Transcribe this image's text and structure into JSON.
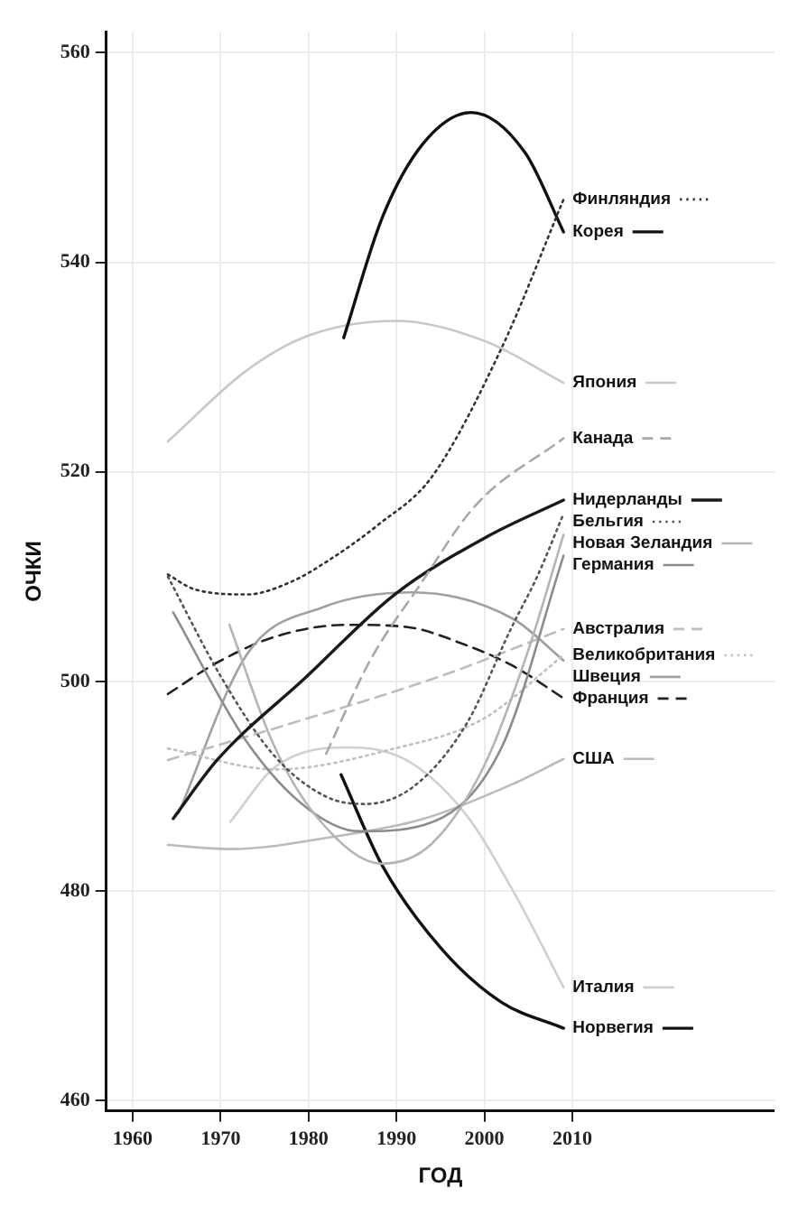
{
  "chart_data": {
    "type": "line",
    "xlabel": "ГОД",
    "ylabel": "ОЧКИ",
    "xlim": [
      1957,
      2033
    ],
    "ylim": [
      459,
      562
    ],
    "xticks": [
      1960,
      1970,
      1980,
      1990,
      2000,
      2010
    ],
    "yticks": [
      460,
      480,
      500,
      520,
      540,
      560
    ],
    "grid": true,
    "legend": "right",
    "series": [
      {
        "name": "Финляндия",
        "color": "#333333",
        "line_style": "dotted",
        "x": [
          1964,
          1967,
          1973,
          1978,
          1982,
          1988,
          1994,
          2002,
          2009
        ],
        "values": [
          510.2,
          508.8,
          508.3,
          509.5,
          511.4,
          515,
          519.5,
          531.9,
          546
        ]
      },
      {
        "name": "Корея",
        "color": "#111111",
        "line_style": "solid",
        "x": [
          1984,
          1988.4,
          1993,
          1998.5,
          2004.6,
          2009
        ],
        "values": [
          532.8,
          544.3,
          551.3,
          554.3,
          550.5,
          542.9
        ]
      },
      {
        "name": "Япония",
        "color": "#c8c8c8",
        "line_style": "solid",
        "x": [
          1964,
          1973,
          1980,
          1990,
          2000,
          2009
        ],
        "values": [
          522.9,
          529.7,
          533,
          534.4,
          532.5,
          528.5
        ]
      },
      {
        "name": "Канада",
        "color": "#a8a8a8",
        "line_style": "dashed",
        "x": [
          1982,
          1987,
          1992.5,
          1999,
          2009
        ],
        "values": [
          493.1,
          502,
          509,
          516.8,
          523.2
        ]
      },
      {
        "name": "Нидерланды",
        "color": "#1a1a1a",
        "line_style": "solid",
        "x": [
          1964.6,
          1969.6,
          1979.7,
          1989.8,
          2000.5,
          2009
        ],
        "values": [
          486.9,
          492.5,
          500.4,
          508.3,
          513.9,
          517.3
        ]
      },
      {
        "name": "Бельгия",
        "color": "#555555",
        "line_style": "dotted",
        "x": [
          1964,
          1970,
          1976,
          1982,
          1986.4,
          1992,
          1998,
          2003,
          2006,
          2009
        ],
        "values": [
          510,
          500.5,
          493,
          489,
          488.3,
          490,
          496,
          505,
          510,
          516
        ]
      },
      {
        "name": "Новая Зеландия",
        "color": "#b4b4b4",
        "line_style": "solid",
        "x": [
          1971,
          1976,
          1981,
          1988.4,
          1994,
          2000,
          2005,
          2009
        ],
        "values": [
          505.4,
          494,
          487,
          482.6,
          484.5,
          492,
          503,
          514
        ]
      },
      {
        "name": "Германия",
        "color": "#8c8c8c",
        "line_style": "solid",
        "x": [
          1964.6,
          1973,
          1979.7,
          1985.7,
          1993.1,
          2001.9,
          2009
        ],
        "values": [
          506.6,
          494.2,
          488,
          485.7,
          486.3,
          493.6,
          512
        ]
      },
      {
        "name": "Австралия",
        "color": "#bdbdbd",
        "line_style": "dashed",
        "x": [
          1964,
          1980,
          1995,
          2009
        ],
        "values": [
          492.5,
          496.5,
          500.5,
          505
        ]
      },
      {
        "name": "Великобритания",
        "color": "#c0c0c0",
        "line_style": "dotted",
        "x": [
          1964,
          1976.3,
          1989.8,
          1999.8,
          2009
        ],
        "values": [
          493.6,
          491.6,
          493.6,
          496.4,
          502.5
        ]
      },
      {
        "name": "Швеция",
        "color": "#a0a0a0",
        "line_style": "solid",
        "x": [
          1965.2,
          1973,
          1981.7,
          1991.8,
          2003.2,
          2009
        ],
        "values": [
          487.4,
          502.6,
          507.1,
          508.5,
          506,
          502
        ]
      },
      {
        "name": "Франция",
        "color": "#222222",
        "line_style": "dashed",
        "x": [
          1964,
          1969.6,
          1976.3,
          1984.4,
          1991.1,
          1997.8,
          2003.2,
          2009
        ],
        "values": [
          498.8,
          501.8,
          504.3,
          505.4,
          505.2,
          503.5,
          501.5,
          498.4
        ]
      },
      {
        "name": "США",
        "color": "#bbbbbb",
        "line_style": "solid",
        "x": [
          1964,
          1971,
          1983,
          1993.1,
          2003.2,
          2009
        ],
        "values": [
          484.4,
          484,
          485.2,
          486.9,
          490.2,
          492.6
        ]
      },
      {
        "name": "Италия",
        "color": "#d0d0d0",
        "line_style": "solid",
        "x": [
          1971.1,
          1976.3,
          1984.4,
          1991.1,
          1997.8,
          2003.2,
          2009
        ],
        "values": [
          486.6,
          491.9,
          493.7,
          492.5,
          487.4,
          480.1,
          470.8
        ]
      },
      {
        "name": "Норвегия",
        "color": "#111111",
        "line_style": "solid",
        "x": [
          1983.7,
          1988.4,
          1995.1,
          2001.9,
          2009
        ],
        "values": [
          491.1,
          482.4,
          474.5,
          469.4,
          466.9
        ]
      }
    ]
  }
}
